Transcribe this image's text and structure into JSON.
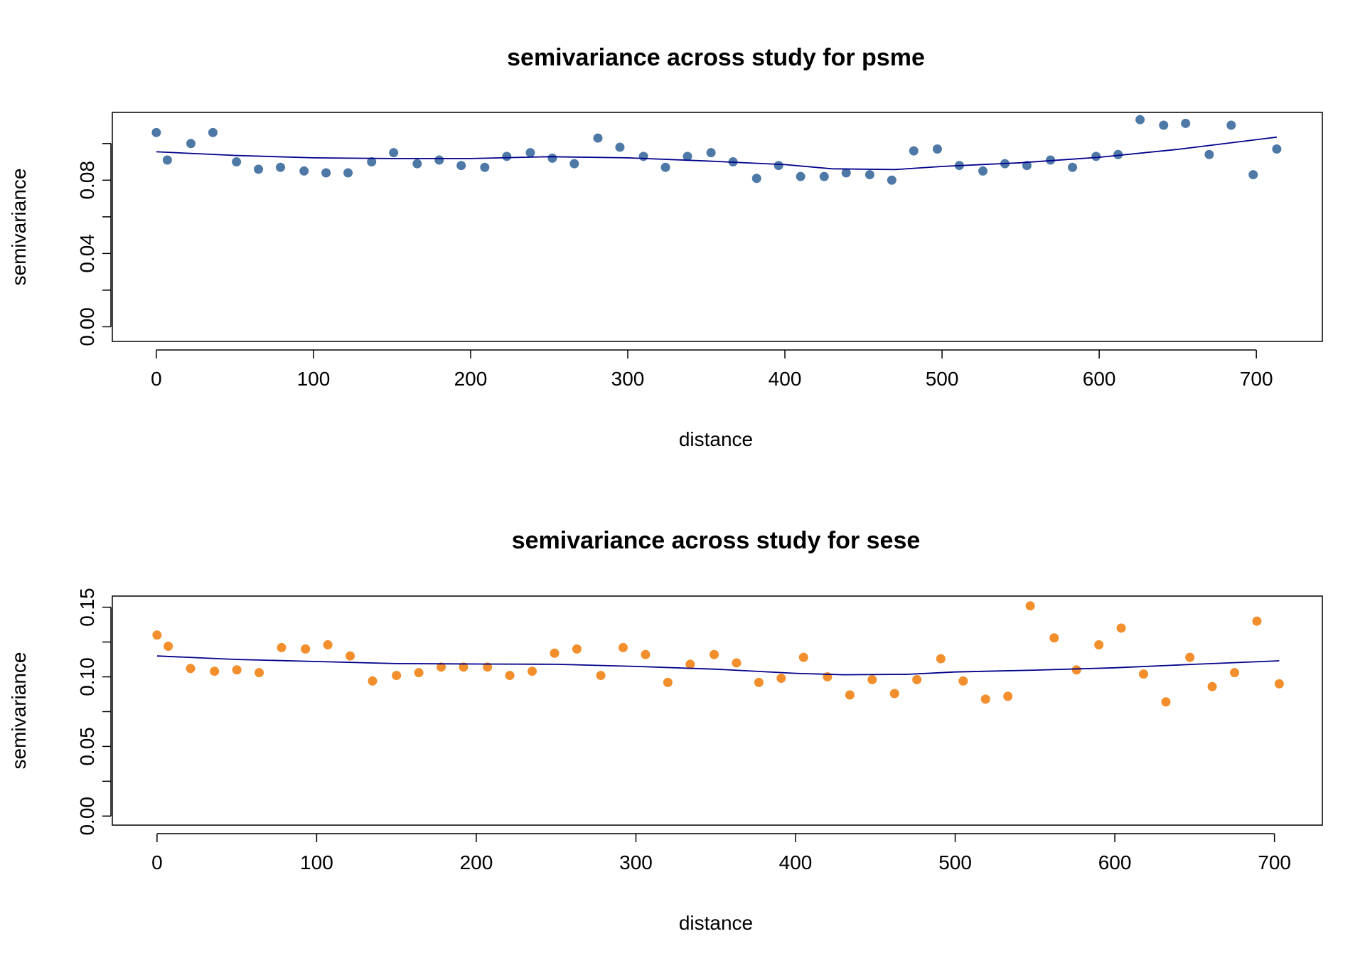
{
  "chart_data": [
    {
      "type": "scatter",
      "title": "semivariance across study for psme",
      "xlabel": "distance",
      "ylabel": "semivariance",
      "xlim": [
        -28,
        742
      ],
      "ylim": [
        -0.008,
        0.117
      ],
      "xticks": [
        "0",
        "100",
        "200",
        "300",
        "400",
        "500",
        "600",
        "700"
      ],
      "yticks": [
        "0.00",
        "0.04",
        "0.08"
      ],
      "grid": false,
      "legend": "none",
      "point_color": "#4e79a7",
      "line_color": "#00008b",
      "series": [
        {
          "kind": "points",
          "x": [
            0,
            7,
            22,
            36,
            51,
            65,
            79,
            94,
            108,
            122,
            137,
            151,
            166,
            180,
            194,
            209,
            223,
            238,
            252,
            266,
            281,
            295,
            310,
            324,
            338,
            353,
            367,
            382,
            396,
            410,
            425,
            439,
            454,
            468,
            482,
            497,
            511,
            526,
            540,
            554,
            569,
            583,
            598,
            612,
            626,
            641,
            655,
            670,
            684,
            698,
            713
          ],
          "y": [
            0.106,
            0.091,
            0.1,
            0.106,
            0.09,
            0.086,
            0.087,
            0.085,
            0.084,
            0.084,
            0.09,
            0.095,
            0.089,
            0.091,
            0.088,
            0.087,
            0.093,
            0.095,
            0.092,
            0.089,
            0.103,
            0.098,
            0.093,
            0.087,
            0.093,
            0.095,
            0.09,
            0.081,
            0.088,
            0.082,
            0.082,
            0.084,
            0.083,
            0.08,
            0.096,
            0.097,
            0.088,
            0.085,
            0.089,
            0.088,
            0.091,
            0.087,
            0.093,
            0.094,
            0.113,
            0.11,
            0.111,
            0.094,
            0.11,
            0.083,
            0.097
          ]
        },
        {
          "kind": "line",
          "x": [
            0,
            50,
            100,
            150,
            200,
            250,
            300,
            350,
            400,
            430,
            470,
            500,
            550,
            600,
            650,
            713
          ],
          "y": [
            0.0955,
            0.0935,
            0.0922,
            0.0918,
            0.0918,
            0.0928,
            0.0922,
            0.0905,
            0.0885,
            0.0862,
            0.0858,
            0.0875,
            0.0895,
            0.0925,
            0.0968,
            0.1035
          ]
        }
      ]
    },
    {
      "type": "scatter",
      "title": "semivariance across study for sese",
      "xlabel": "distance",
      "ylabel": "semivariance",
      "xlim": [
        -28,
        730
      ],
      "ylim": [
        -0.0065,
        0.158
      ],
      "xticks": [
        "0",
        "100",
        "200",
        "300",
        "400",
        "500",
        "600",
        "700"
      ],
      "yticks": [
        "0.00",
        "0.05",
        "0.10",
        "0.15"
      ],
      "grid": false,
      "legend": "none",
      "point_color": "#f28e2b",
      "line_color": "#00008b",
      "series": [
        {
          "kind": "points",
          "x": [
            0,
            7,
            21,
            36,
            50,
            64,
            78,
            93,
            107,
            121,
            135,
            150,
            164,
            178,
            192,
            207,
            221,
            235,
            249,
            263,
            278,
            292,
            306,
            320,
            334,
            349,
            363,
            377,
            391,
            405,
            420,
            434,
            448,
            462,
            476,
            491,
            505,
            519,
            533,
            547,
            562,
            576,
            590,
            604,
            618,
            632,
            647,
            661,
            675,
            689,
            703
          ],
          "y": [
            0.13,
            0.122,
            0.106,
            0.104,
            0.105,
            0.103,
            0.121,
            0.12,
            0.123,
            0.115,
            0.097,
            0.101,
            0.103,
            0.107,
            0.107,
            0.107,
            0.101,
            0.104,
            0.117,
            0.12,
            0.101,
            0.121,
            0.116,
            0.096,
            0.109,
            0.116,
            0.11,
            0.096,
            0.099,
            0.114,
            0.1,
            0.087,
            0.098,
            0.088,
            0.098,
            0.113,
            0.097,
            0.084,
            0.086,
            0.151,
            0.128,
            0.105,
            0.123,
            0.135,
            0.102,
            0.082,
            0.114,
            0.093,
            0.103,
            0.14,
            0.095
          ]
        },
        {
          "kind": "line",
          "x": [
            0,
            50,
            100,
            150,
            200,
            250,
            300,
            350,
            400,
            430,
            470,
            500,
            550,
            600,
            650,
            703
          ],
          "y": [
            0.115,
            0.1125,
            0.111,
            0.1095,
            0.1092,
            0.109,
            0.1075,
            0.1055,
            0.1025,
            0.1015,
            0.1018,
            0.1035,
            0.1048,
            0.1065,
            0.109,
            0.1115
          ]
        }
      ]
    }
  ]
}
